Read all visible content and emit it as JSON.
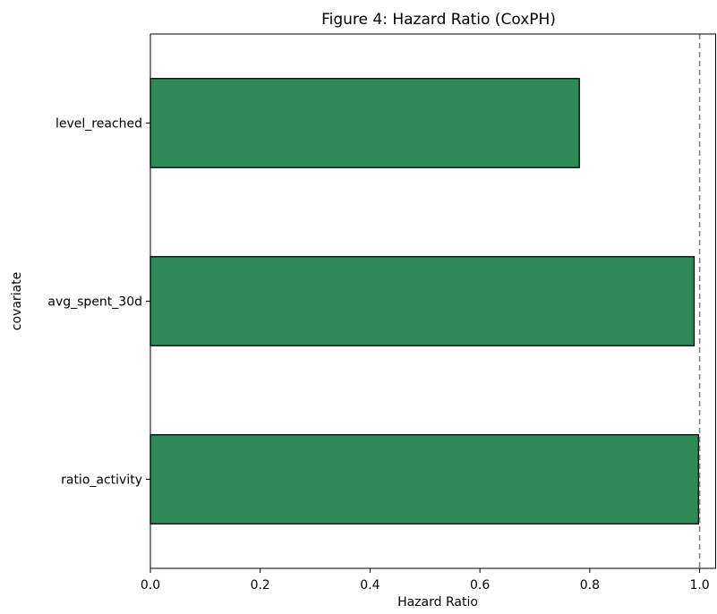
{
  "chart_data": {
    "type": "bar",
    "orientation": "horizontal",
    "title": "Figure 4: Hazard Ratio (CoxPH)",
    "xlabel": "Hazard Ratio",
    "ylabel": "covariate",
    "categories": [
      "level_reached",
      "avg_spent_30d",
      "ratio_activity"
    ],
    "values": [
      0.781,
      0.99,
      0.998
    ],
    "xlim": [
      0,
      1.03
    ],
    "xticks": [
      0.0,
      0.2,
      0.4,
      0.6,
      0.8,
      1.0
    ],
    "xtick_labels": [
      "0.0",
      "0.2",
      "0.4",
      "0.6",
      "0.8",
      "1.0"
    ],
    "reference_line": {
      "x": 1.0,
      "style": "dashed",
      "color": "#808080"
    },
    "bar_color": "#2e8b57",
    "bar_edge_color": "#000000",
    "grid": false,
    "legend": "none"
  }
}
